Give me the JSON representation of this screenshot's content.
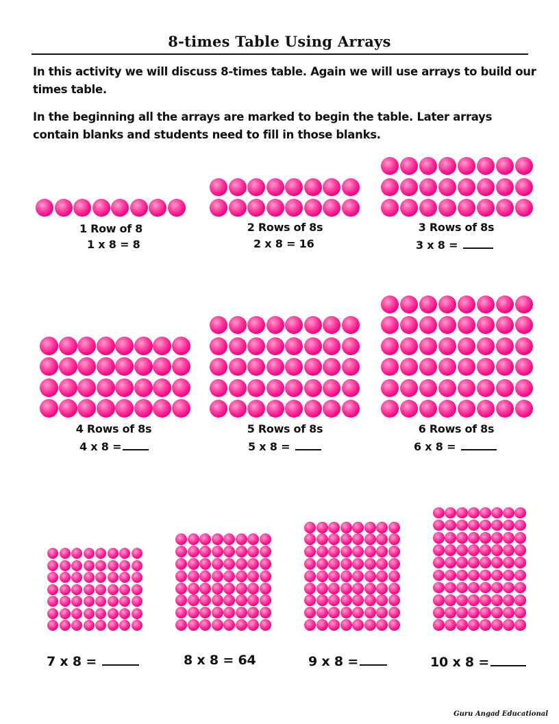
{
  "title": "8-times Table Using Arrays",
  "intro": {
    "p1": "In this activity we will discuss 8-times table. Again we will use arrays to build our times table.",
    "p2": "In the beginning all the arrays are marked to begin the table. Later arrays contain blanks and students need to fill in those blanks."
  },
  "ball_color": "#ff1493",
  "arrays": [
    {
      "rows": 1,
      "cols": 8,
      "caption": "1 Row of 8",
      "equation": "1 x 8 = 8",
      "answer_blank": false
    },
    {
      "rows": 2,
      "cols": 8,
      "caption": "2 Rows of 8s",
      "equation": "2 x 8 = 16",
      "answer_blank": false
    },
    {
      "rows": 3,
      "cols": 8,
      "caption": "3 Rows of 8s",
      "equation": "3 x 8 =",
      "answer_blank": true
    },
    {
      "rows": 4,
      "cols": 8,
      "caption": "4 Rows of 8s",
      "equation": "4 x 8 =",
      "answer_blank": true
    },
    {
      "rows": 5,
      "cols": 8,
      "caption": "5 Rows of 8s",
      "equation": "5 x 8 =",
      "answer_blank": true
    },
    {
      "rows": 6,
      "cols": 8,
      "caption": "6 Rows of 8s",
      "equation": "6 x 8 =",
      "answer_blank": true
    },
    {
      "rows": 7,
      "cols": 8,
      "caption": "",
      "equation": "7 x 8 =",
      "answer_blank": true
    },
    {
      "rows": 8,
      "cols": 8,
      "caption": "",
      "equation": "8 x 8 = 64",
      "answer_blank": false
    },
    {
      "rows": 9,
      "cols": 8,
      "caption": "",
      "equation": "9 x 8 =",
      "answer_blank": true
    },
    {
      "rows": 10,
      "cols": 8,
      "caption": "",
      "equation": "10 x 8 =",
      "answer_blank": true
    }
  ],
  "footer": "Guru Angad Educational"
}
